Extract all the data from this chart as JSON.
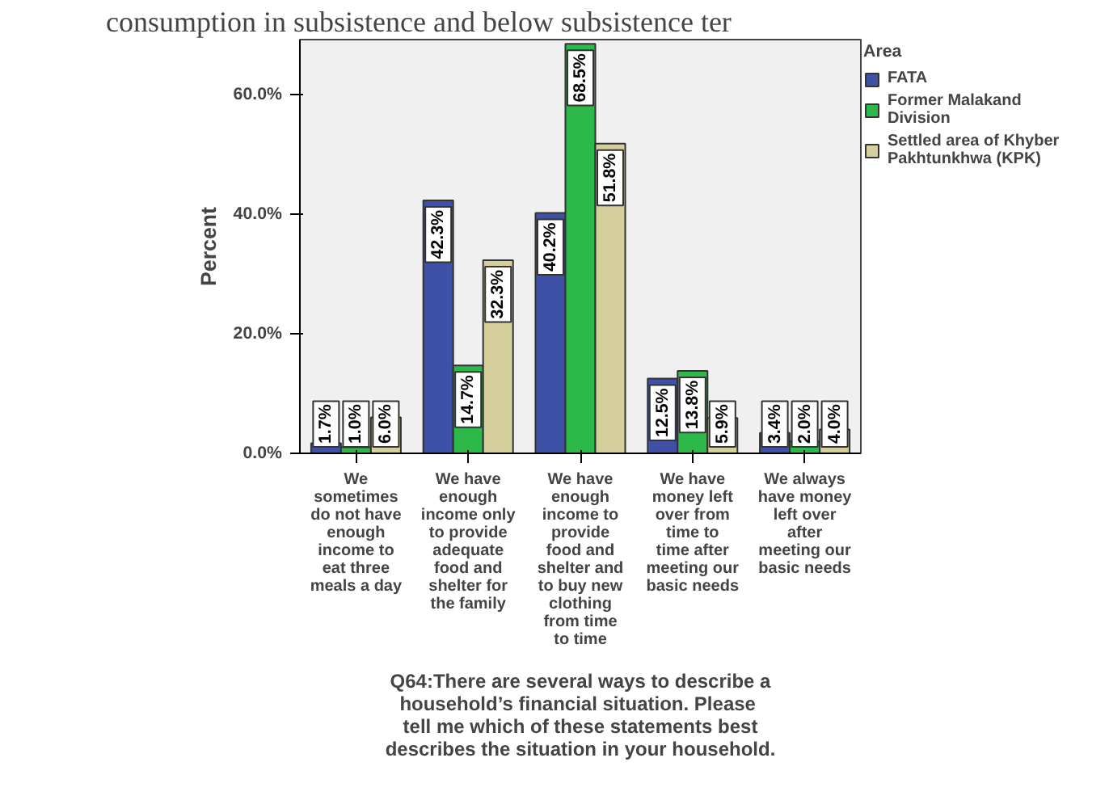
{
  "chart_data": {
    "type": "bar",
    "categories": [
      "We sometimes do not have enough income to eat three meals a day",
      "We have enough income only to provide adequate food and shelter for the family",
      "We have enough income to provide food and shelter and to buy new clothing from time to time",
      "We have money left over from time to time after meeting our basic needs",
      "We always have money left over after meeting our basic needs"
    ],
    "series": [
      {
        "name": "FATA",
        "color": "#3f51a6",
        "values": [
          1.7,
          42.3,
          40.2,
          12.5,
          3.4
        ],
        "value_labels": [
          "1.7%",
          "42.3%",
          "40.2%",
          "12.5%",
          "3.4%"
        ]
      },
      {
        "name": "Former Malakand Division",
        "color": "#2db84a",
        "values": [
          1.0,
          14.7,
          68.5,
          13.8,
          2.0
        ],
        "value_labels": [
          "1.0%",
          "14.7%",
          "68.5%",
          "13.8%",
          "2.0%"
        ]
      },
      {
        "name": "Settled area of Khyber Pakhtunkhwa (KPK)",
        "color": "#d5cf9b",
        "values": [
          6.0,
          32.3,
          51.8,
          5.9,
          4.0
        ],
        "value_labels": [
          "6.0%",
          "32.3%",
          "51.8%",
          "5.9%",
          "4.0%"
        ]
      }
    ],
    "ylabel": "Percent",
    "xlabel": "Q64:There are several ways to describe a household’s financial situation.  Please tell me which of these statements best describes the situation in your household.",
    "legend_title": "Area",
    "legend": "right",
    "ylim": [
      0,
      69.2
    ],
    "yticks": [
      {
        "value": 0,
        "label": "0.0%"
      },
      {
        "value": 20,
        "label": "20.0%"
      },
      {
        "value": 40,
        "label": "40.0%"
      },
      {
        "value": 60,
        "label": "60.0%"
      }
    ],
    "grid": false,
    "annotations": [
      "consumption in subsistence and below subsistence ter"
    ]
  }
}
